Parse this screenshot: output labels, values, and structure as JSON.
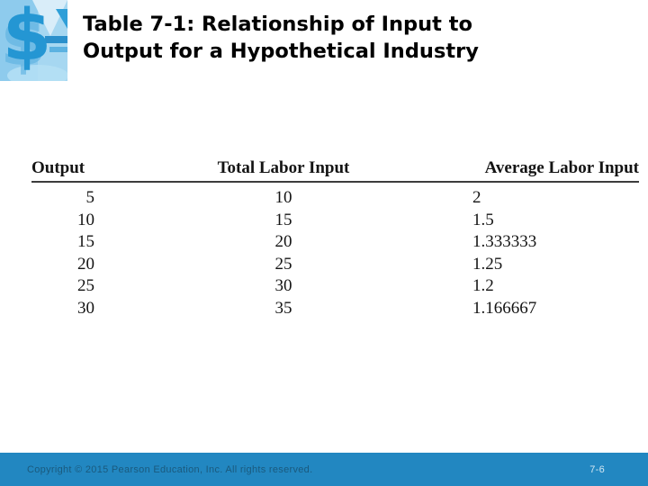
{
  "header": {
    "title_line1": "Table 7-1: Relationship of Input to",
    "title_line2": "Output for a Hypothetical Industry"
  },
  "logo": {
    "icon": "dollar-sign-logo",
    "base_color": "#8ecbed",
    "accent_color": "#2496d3"
  },
  "table": {
    "columns": [
      "Output",
      "Total Labor Input",
      "Average Labor Input"
    ],
    "rows": [
      [
        "5",
        "10",
        "2"
      ],
      [
        "10",
        "15",
        "1.5"
      ],
      [
        "15",
        "20",
        "1.333333"
      ],
      [
        "20",
        "25",
        "1.25"
      ],
      [
        "25",
        "30",
        "1.2"
      ],
      [
        "30",
        "35",
        "1.166667"
      ]
    ]
  },
  "footer": {
    "copyright": "Copyright © 2015 Pearson Education, Inc. All rights reserved.",
    "page": "7-6",
    "bar_color": "#2287c1"
  }
}
